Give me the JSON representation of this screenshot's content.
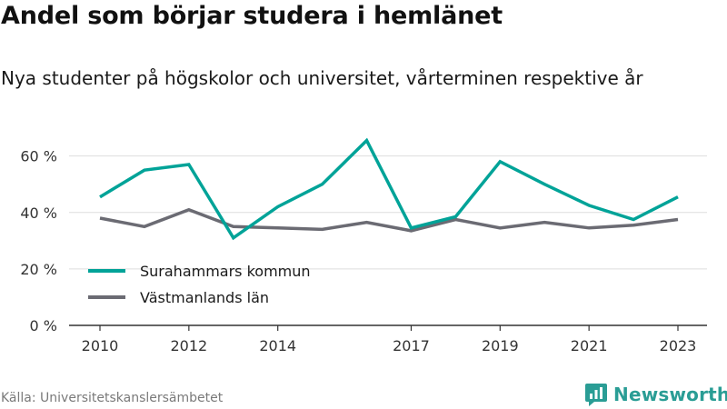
{
  "title": "Andel som börjar studera i hemlänet",
  "subtitle": "Nya studenter på högskolor och universitet, vårterminen respektive år",
  "source": "Källa: Universitetskanslersämbetet",
  "brand": "Newsworthy",
  "colors": {
    "series_1": "#00a398",
    "series_2": "#6b6b73",
    "grid": "#dddddd",
    "axis": "#333333",
    "brand": "#2a9d95"
  },
  "icons": {
    "logo": "newsworthy-bar-chart-icon"
  },
  "chart_data": {
    "type": "line",
    "x": [
      2010,
      2011,
      2012,
      2013,
      2014,
      2015,
      2016,
      2017,
      2018,
      2019,
      2020,
      2021,
      2022,
      2023
    ],
    "x_ticks": [
      "2010",
      "2012",
      "2014",
      "2017",
      "2019",
      "2021",
      "2023"
    ],
    "y_ticks": [
      "0 %",
      "20 %",
      "40 %",
      "60 %"
    ],
    "ylim": [
      0,
      66
    ],
    "y_tick_values": [
      0,
      20,
      40,
      60
    ],
    "grid": true,
    "legend_position": "lower-left",
    "series": [
      {
        "name": "Surahammars kommun",
        "values": [
          45.5,
          55,
          57,
          31,
          42,
          50,
          65.5,
          34.5,
          38.5,
          58,
          50,
          42.5,
          37.5,
          45.5
        ]
      },
      {
        "name": "Västmanlands län",
        "values": [
          38,
          35,
          41,
          35,
          34.5,
          34,
          36.5,
          33.5,
          37.5,
          34.5,
          36.5,
          34.5,
          35.5,
          37.5
        ]
      }
    ]
  }
}
